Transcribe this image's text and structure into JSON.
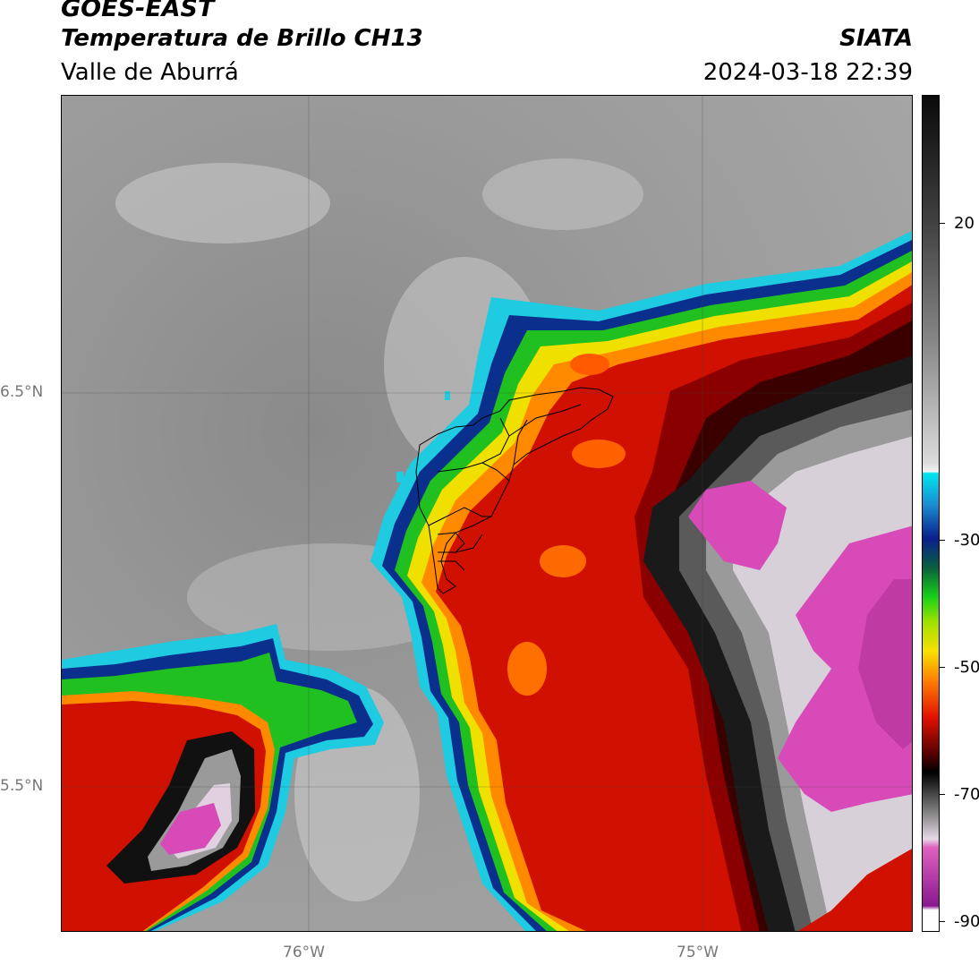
{
  "header": {
    "satellite": "GOES-EAST",
    "product": "Temperatura de Brillo CH13",
    "region": "Valle de Aburrá",
    "org": "SIATA",
    "datetime": "2024-03-18 22:39"
  },
  "axes": {
    "lat_labels": [
      "6.5°N",
      "5.5°N"
    ],
    "lon_labels": [
      "76°W",
      "75°W"
    ]
  },
  "colorbar": {
    "labels": [
      "20",
      "-30",
      "-50",
      "-70",
      "-90"
    ]
  },
  "colors": {
    "cloud_warm": "#808080",
    "cyan": "#1ecbe1",
    "blue": "#0a2f8c",
    "green": "#20c020",
    "yellow": "#f0e000",
    "orange": "#ff8a00",
    "red": "#d01000",
    "dark_red": "#5a0000",
    "black": "#1a1a1a",
    "magenta": "#d84ab8"
  }
}
